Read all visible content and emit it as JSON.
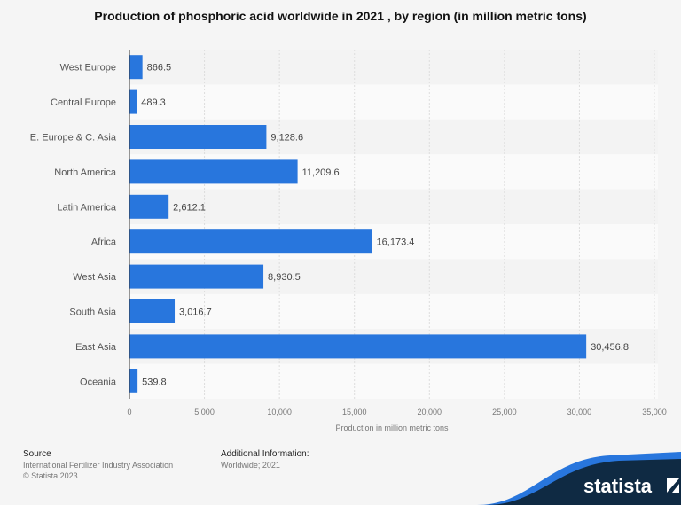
{
  "chart_data": {
    "type": "bar",
    "orientation": "horizontal",
    "title": "Production of phosphoric acid worldwide in 2021 , by region (in million metric tons)",
    "xlabel": "Production in million metric tons",
    "ylabel": "",
    "categories": [
      "West Europe",
      "Central Europe",
      "E. Europe & C. Asia",
      "North America",
      "Latin America",
      "Africa",
      "West Asia",
      "South Asia",
      "East Asia",
      "Oceania"
    ],
    "values": [
      866.5,
      489.3,
      9128.6,
      11209.6,
      2612.1,
      16173.4,
      8930.5,
      3016.7,
      30456.8,
      539.8
    ],
    "value_labels": [
      "866.5",
      "489.3",
      "9,128.6",
      "11,209.6",
      "2,612.1",
      "16,173.4",
      "8,930.5",
      "3,016.7",
      "30,456.8",
      "539.8"
    ],
    "xlim": [
      0,
      35000
    ],
    "ticks": [
      0,
      5000,
      10000,
      15000,
      20000,
      25000,
      30000,
      35000
    ],
    "tick_labels": [
      "0",
      "5,000",
      "10,000",
      "15,000",
      "20,000",
      "25,000",
      "30,000",
      "35,000"
    ],
    "grid": true,
    "bar_color": "#2876dd"
  },
  "footer": {
    "source_heading": "Source",
    "source_text": "International Fertilizer Industry Association",
    "copyright": "© Statista 2023",
    "additional_heading": "Additional Information:",
    "additional_text": "Worldwide; 2021",
    "logo_text": "statista"
  },
  "colors": {
    "brand_dark": "#0f2a43",
    "brand_blue": "#2876dd"
  }
}
